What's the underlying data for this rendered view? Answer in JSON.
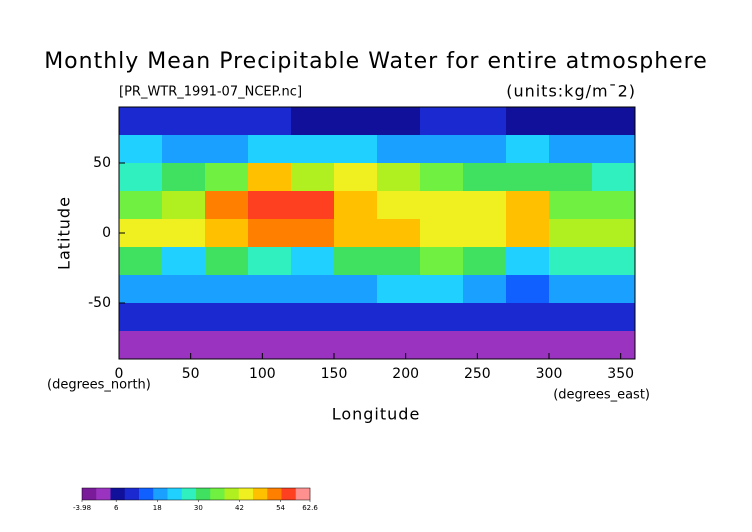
{
  "chart_data": {
    "type": "contour",
    "title": "Monthly Mean Precipitable Water for entire atmosphere",
    "subtitle": "[PR_WTR_1991-07_NCEP.nc]",
    "units": "(units:kg/m¯2)",
    "x_label": "Longitude",
    "y_label": "Latitude",
    "x_unit": "(degrees_east)",
    "y_unit": "(degrees_north)",
    "xlim": [
      0,
      360
    ],
    "ylim": [
      -90,
      90
    ],
    "xticks": [
      0,
      50,
      100,
      150,
      200,
      250,
      300,
      350
    ],
    "yticks": [
      -50,
      0,
      50
    ],
    "lat": [
      80,
      60,
      40,
      20,
      0,
      -20,
      -40,
      -60,
      -80
    ],
    "lon": [
      15,
      45,
      75,
      105,
      135,
      165,
      195,
      225,
      255,
      285,
      315,
      345
    ],
    "z": [
      [
        10,
        10,
        10,
        10,
        8,
        8,
        8,
        10,
        10,
        8,
        6,
        8
      ],
      [
        22,
        20,
        20,
        22,
        24,
        22,
        20,
        20,
        18,
        22,
        18,
        20
      ],
      [
        28,
        30,
        36,
        48,
        38,
        44,
        38,
        34,
        30,
        32,
        30,
        28
      ],
      [
        34,
        40,
        54,
        56,
        56,
        48,
        44,
        42,
        42,
        50,
        36,
        34
      ],
      [
        44,
        44,
        48,
        52,
        52,
        48,
        46,
        44,
        44,
        46,
        40,
        40
      ],
      [
        30,
        22,
        30,
        26,
        22,
        30,
        32,
        34,
        30,
        24,
        26,
        28
      ],
      [
        20,
        20,
        20,
        18,
        18,
        20,
        22,
        22,
        20,
        16,
        18,
        20
      ],
      [
        10,
        10,
        10,
        10,
        10,
        10,
        10,
        10,
        10,
        10,
        10,
        10
      ],
      [
        2,
        2,
        2,
        2,
        2,
        2,
        2,
        2,
        2,
        2,
        2,
        2
      ]
    ],
    "zlim": [
      -3.98,
      62.6
    ],
    "zticks": [
      -3.98,
      6,
      18,
      30,
      42,
      54,
      62.6
    ],
    "colorscale": [
      "#7a1c9a",
      "#9a34c0",
      "#10109a",
      "#1a2ad0",
      "#1060ff",
      "#1aa0ff",
      "#20d0ff",
      "#30f0c0",
      "#40e060",
      "#70f040",
      "#b0f020",
      "#f0f020",
      "#ffc000",
      "#ff8000",
      "#ff4020",
      "#ff9090"
    ]
  }
}
